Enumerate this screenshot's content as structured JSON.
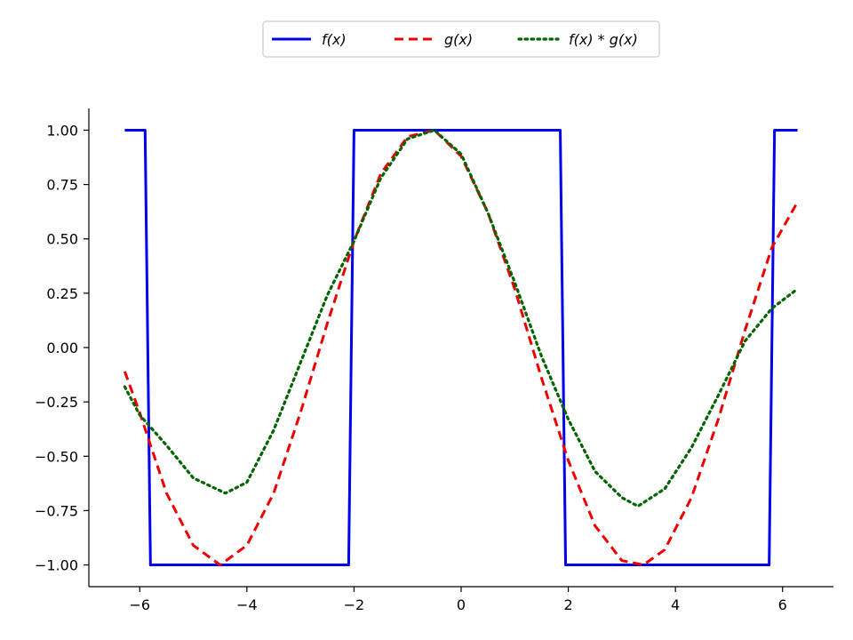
{
  "chart_data": {
    "type": "line",
    "title": "",
    "xlabel": "",
    "ylabel": "",
    "xlim": [
      -6.95,
      6.95
    ],
    "ylim": [
      -1.1,
      1.1
    ],
    "x_ticks": [
      -6,
      -4,
      -2,
      0,
      2,
      4,
      6
    ],
    "y_ticks": [
      1.0,
      0.75,
      0.5,
      0.25,
      0.0,
      -0.25,
      -0.5,
      -0.75,
      -1.0
    ],
    "x_tick_labels": [
      "−6",
      "−4",
      "−2",
      "0",
      "2",
      "4",
      "6"
    ],
    "y_tick_labels": [
      "1.00",
      "0.75",
      "0.50",
      "0.25",
      "0.00",
      "−0.25",
      "−0.50",
      "−0.75",
      "−1.00"
    ],
    "grid": false,
    "legend_position": "top-center",
    "series": [
      {
        "name": "f(x)",
        "color": "#0000ee",
        "style": "solid",
        "points": [
          [
            -6.28,
            1.0
          ],
          [
            -5.9,
            1.0
          ],
          [
            -5.8,
            -1.0
          ],
          [
            -2.1,
            -1.0
          ],
          [
            -2.0,
            1.0
          ],
          [
            1.85,
            1.0
          ],
          [
            1.95,
            -1.0
          ],
          [
            5.75,
            -1.0
          ],
          [
            5.85,
            1.0
          ],
          [
            6.28,
            1.0
          ]
        ]
      },
      {
        "name": "g(x)",
        "color": "#ee0000",
        "style": "dashed",
        "points": [
          [
            -6.28,
            -0.11
          ],
          [
            -6.0,
            -0.3
          ],
          [
            -5.5,
            -0.67
          ],
          [
            -5.0,
            -0.91
          ],
          [
            -4.5,
            -1.0
          ],
          [
            -4.0,
            -0.91
          ],
          [
            -3.5,
            -0.67
          ],
          [
            -3.0,
            -0.3
          ],
          [
            -2.5,
            0.11
          ],
          [
            -2.0,
            0.49
          ],
          [
            -1.5,
            0.8
          ],
          [
            -1.0,
            0.97
          ],
          [
            -0.5,
            1.0
          ],
          [
            0.0,
            0.88
          ],
          [
            0.5,
            0.62
          ],
          [
            1.0,
            0.27
          ],
          [
            1.5,
            -0.14
          ],
          [
            2.0,
            -0.52
          ],
          [
            2.5,
            -0.82
          ],
          [
            3.0,
            -0.98
          ],
          [
            3.4,
            -1.0
          ],
          [
            3.8,
            -0.93
          ],
          [
            4.3,
            -0.69
          ],
          [
            4.8,
            -0.33
          ],
          [
            5.3,
            0.08
          ],
          [
            5.8,
            0.46
          ],
          [
            6.28,
            0.67
          ]
        ]
      },
      {
        "name": "f(x) * g(x)",
        "color": "#006400",
        "style": "dotted",
        "points": [
          [
            -6.28,
            -0.18
          ],
          [
            -6.0,
            -0.31
          ],
          [
            -5.5,
            -0.45
          ],
          [
            -5.0,
            -0.6
          ],
          [
            -4.4,
            -0.67
          ],
          [
            -4.0,
            -0.62
          ],
          [
            -3.5,
            -0.38
          ],
          [
            -3.0,
            -0.07
          ],
          [
            -2.5,
            0.24
          ],
          [
            -2.0,
            0.49
          ],
          [
            -1.5,
            0.78
          ],
          [
            -1.0,
            0.96
          ],
          [
            -0.5,
            1.0
          ],
          [
            0.0,
            0.89
          ],
          [
            0.5,
            0.62
          ],
          [
            1.0,
            0.3
          ],
          [
            1.5,
            -0.04
          ],
          [
            2.0,
            -0.33
          ],
          [
            2.5,
            -0.57
          ],
          [
            3.0,
            -0.69
          ],
          [
            3.3,
            -0.73
          ],
          [
            3.8,
            -0.65
          ],
          [
            4.3,
            -0.46
          ],
          [
            4.8,
            -0.22
          ],
          [
            5.3,
            0.03
          ],
          [
            5.8,
            0.18
          ],
          [
            6.28,
            0.27
          ]
        ]
      }
    ]
  }
}
